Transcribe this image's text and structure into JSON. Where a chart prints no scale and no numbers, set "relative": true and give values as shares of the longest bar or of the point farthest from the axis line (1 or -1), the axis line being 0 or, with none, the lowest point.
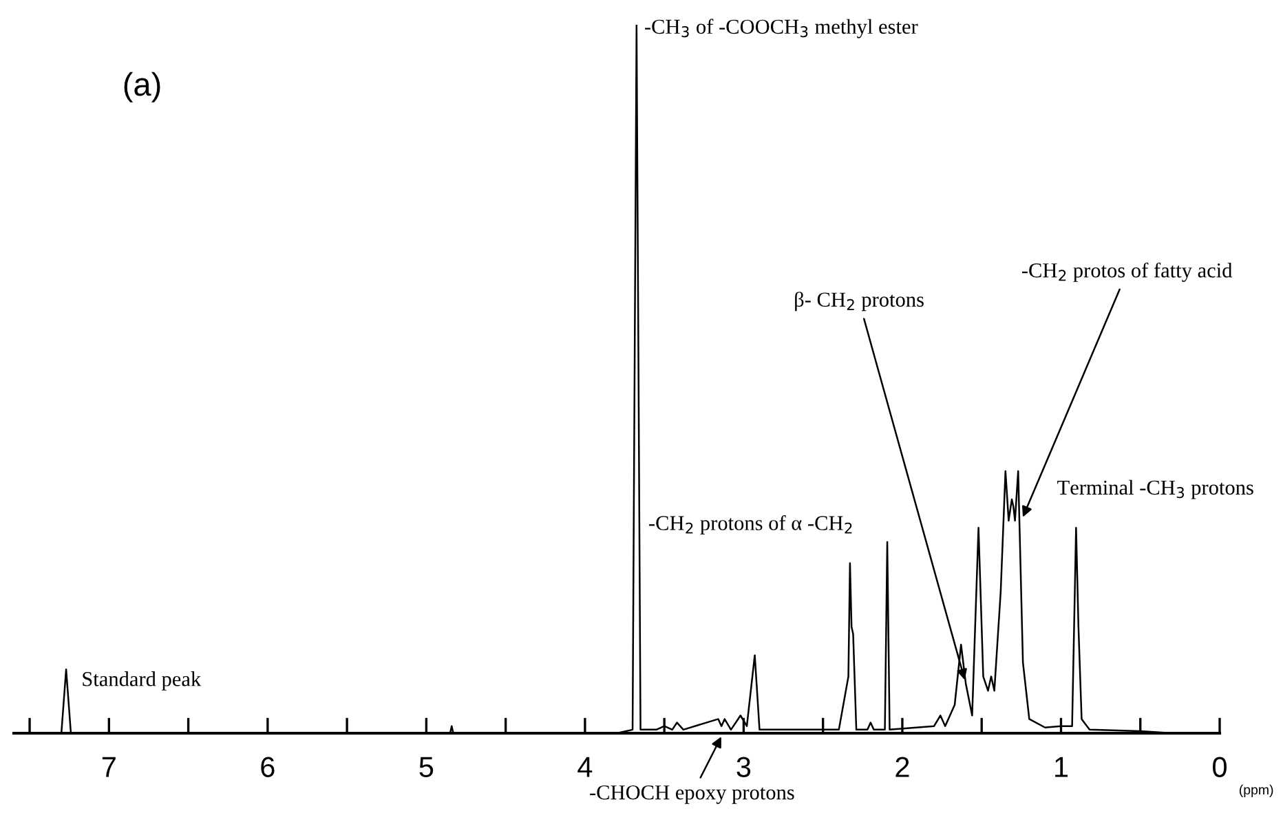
{
  "chart_data": {
    "type": "line",
    "relative": true,
    "title": "(a)",
    "xlabel": "(ppm)",
    "color": "#000000",
    "x": [
      7.6,
      7.3,
      7.27,
      7.24,
      4.85,
      4.84,
      4.83,
      3.8,
      3.7,
      3.675,
      3.65,
      3.55,
      3.5,
      3.45,
      3.42,
      3.38,
      3.16,
      3.14,
      3.12,
      3.08,
      3.02,
      2.98,
      2.93,
      2.9,
      2.4,
      2.34,
      2.33,
      2.32,
      2.31,
      2.29,
      2.22,
      2.2,
      2.18,
      2.11,
      2.095,
      2.08,
      1.8,
      1.76,
      1.73,
      1.67,
      1.63,
      1.6,
      1.56,
      1.52,
      1.49,
      1.46,
      1.44,
      1.42,
      1.38,
      1.35,
      1.33,
      1.31,
      1.3,
      1.29,
      1.27,
      1.24,
      1.2,
      1.1,
      1.0,
      0.93,
      0.905,
      0.89,
      0.87,
      0.82,
      0.5,
      0.3
    ],
    "values": [
      0,
      0,
      0.09,
      0,
      0,
      0.01,
      0,
      0,
      0.005,
      1.0,
      0.005,
      0.005,
      0.01,
      0.005,
      0.015,
      0.005,
      0.02,
      0.01,
      0.02,
      0.005,
      0.025,
      0.01,
      0.11,
      0.005,
      0.005,
      0.08,
      0.24,
      0.15,
      0.14,
      0.005,
      0.005,
      0.015,
      0.005,
      0.005,
      0.27,
      0.005,
      0.01,
      0.025,
      0.01,
      0.04,
      0.125,
      0.07,
      0.025,
      0.29,
      0.08,
      0.06,
      0.08,
      0.06,
      0.2,
      0.37,
      0.3,
      0.33,
      0.32,
      0.3,
      0.37,
      0.1,
      0.02,
      0.008,
      0.01,
      0.01,
      0.29,
      0.15,
      0.02,
      0.005,
      0.003,
      0
    ],
    "xlim": [
      7.6,
      0
    ],
    "xticks": [
      {
        "value": 7.5,
        "label": null
      },
      7,
      {
        "value": 6.5,
        "label": null
      },
      6,
      {
        "value": 5.5,
        "label": null
      },
      5,
      {
        "value": 4.5,
        "label": null
      },
      4,
      {
        "value": 3.5,
        "label": null
      },
      3,
      {
        "value": 2.5,
        "label": null
      },
      2,
      {
        "value": 1.5,
        "label": null
      },
      1,
      {
        "value": 0.5,
        "label": null
      },
      0
    ],
    "tick_labels": "x",
    "grid": false,
    "legend": false,
    "annotations": [
      {
        "text": "Standard peak",
        "x": 7.27,
        "y": 0.09
      },
      {
        "text": "-CH$_{3}$ of -COOCH$_{3}$ methyl ester",
        "x": 3.675,
        "y": 1.0
      },
      {
        "text": "-CH$_{2}$ protons of α -CH$_{2}$",
        "x": 2.33,
        "y": 0.24
      },
      {
        "text": "β- CH$_{2}$ protons",
        "x": 1.6,
        "y": 0.07
      },
      {
        "text": "-CH$_{2}$ protos of fatty acid",
        "x": 1.25,
        "y": 0.3
      },
      {
        "text": "Terminal -CH$_{3}$ protons",
        "x": 0.905,
        "y": 0.29
      },
      {
        "text": "-CHOCH epoxy protons",
        "x": 3.13,
        "y": 0.0
      }
    ]
  }
}
